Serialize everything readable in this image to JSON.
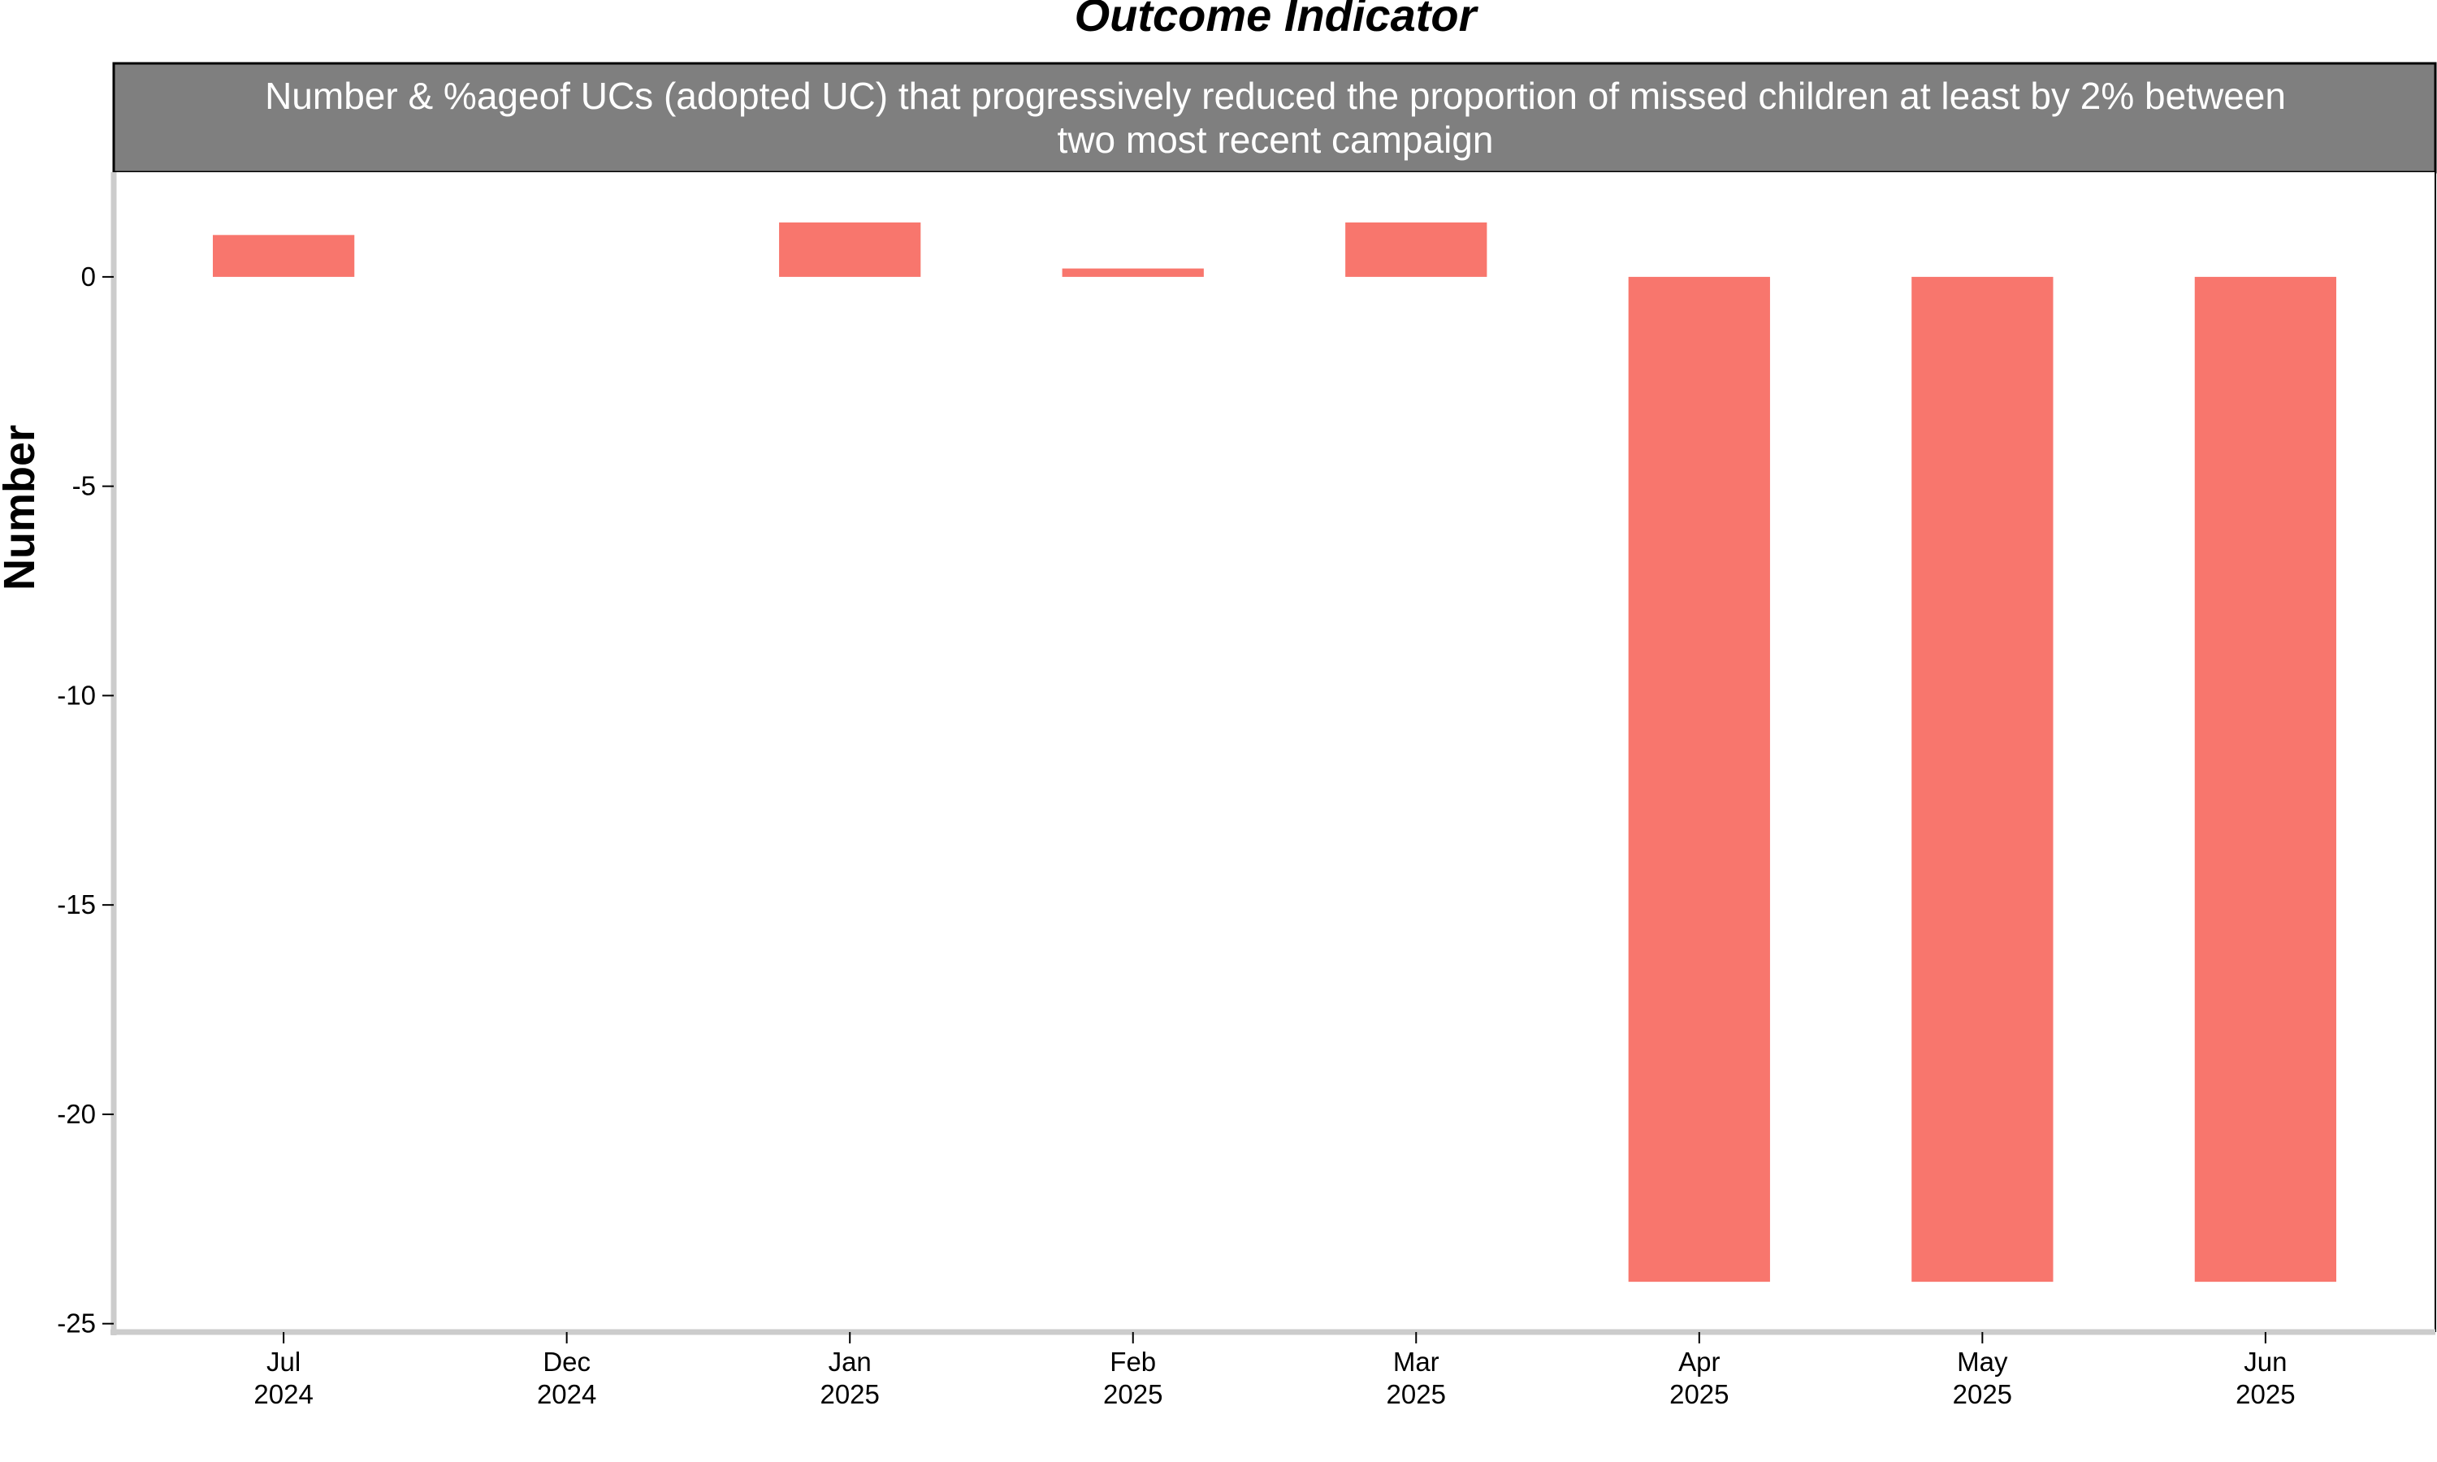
{
  "chart_data": {
    "type": "bar",
    "title": "Outcome Indicator",
    "strip_lines": [
      "Number & %ageof UCs (adopted UC) that progressively reduced the proportion of missed children at least by 2% between",
      "two most recent campaign"
    ],
    "ylabel": "Number",
    "xlabel": "",
    "categories": [
      [
        "Jul",
        "2024"
      ],
      [
        "Dec",
        "2024"
      ],
      [
        "Jan",
        "2025"
      ],
      [
        "Feb",
        "2025"
      ],
      [
        "Mar",
        "2025"
      ],
      [
        "Apr",
        "2025"
      ],
      [
        "May",
        "2025"
      ],
      [
        "Jun",
        "2025"
      ]
    ],
    "values": [
      1,
      null,
      1.3,
      0.2,
      1.3,
      -24,
      -24,
      -24
    ],
    "ylim": [
      -25.2,
      2.5
    ],
    "yticks": [
      0,
      -5,
      -10,
      -15,
      -20,
      -25
    ],
    "bar_color": "#F8766D",
    "strip_color": "#7F7F7F",
    "grid": false,
    "legend": "none"
  }
}
